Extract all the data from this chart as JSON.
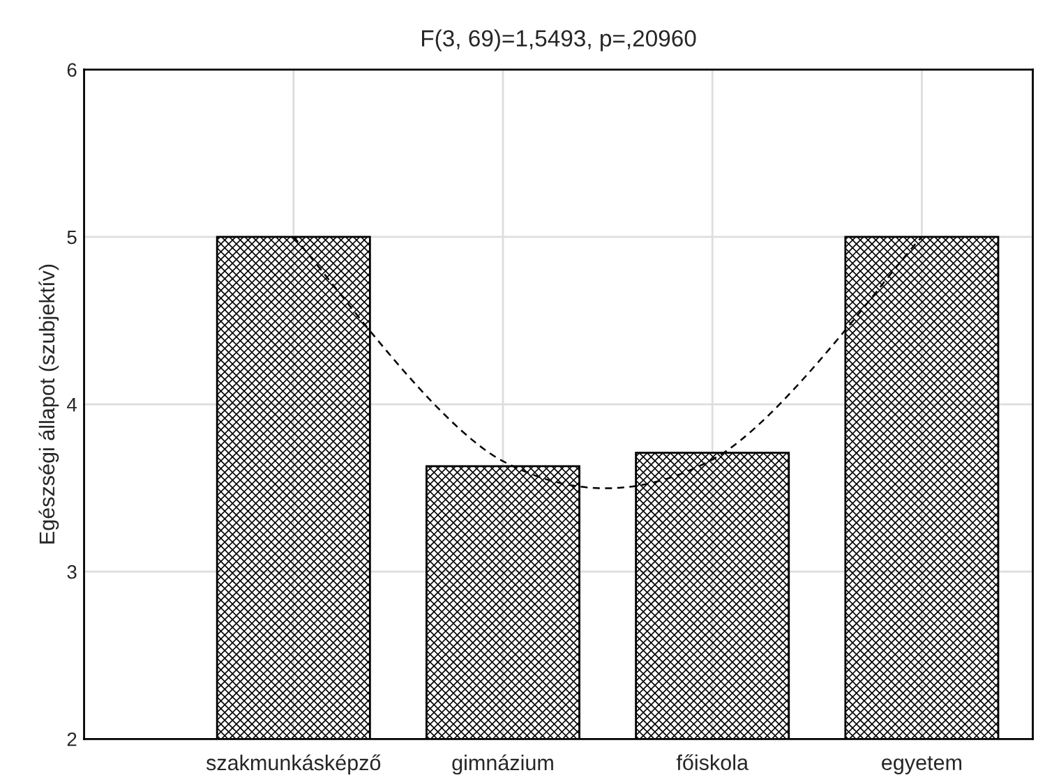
{
  "chart_data": {
    "type": "bar",
    "title": "F(3, 69)=1,5493, p=,20960",
    "ylabel": "Egészségi állapot (szubjektív)",
    "categories": [
      "szakmunkásképző",
      "gimnázium",
      "főiskola",
      "egyetem"
    ],
    "series": [
      {
        "color": "#000000",
        "values": [
          5,
          3.63,
          3.71,
          5
        ]
      },
      {
        "type": "line",
        "color": "#000000",
        "line_style": "dashed",
        "values": [
          5,
          3.66,
          3.67,
          5
        ]
      }
    ],
    "ylim": [
      2,
      6
    ],
    "yticks": [
      2,
      3,
      4,
      5,
      6
    ],
    "grid": true,
    "legend": false
  }
}
